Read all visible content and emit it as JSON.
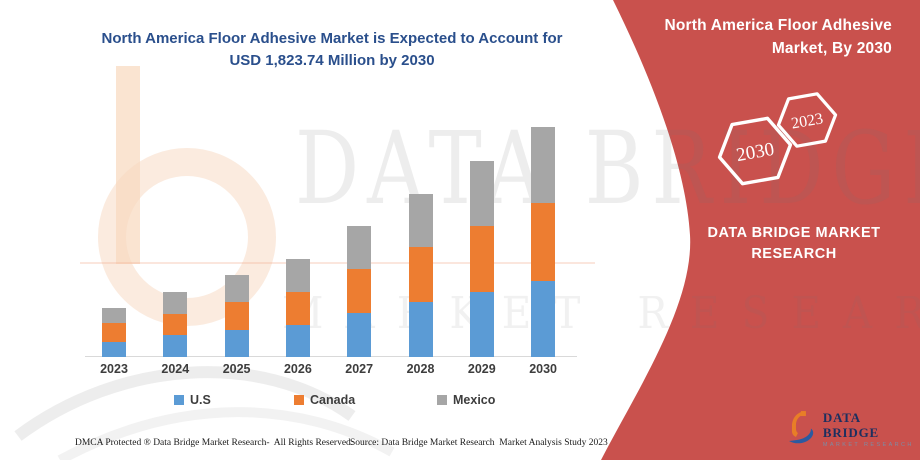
{
  "main_title": {
    "line1": "North America Floor Adhesive Market is Expected to Account for",
    "line2": "USD 1,823.74 Million by 2030",
    "color": "#2A4F8C"
  },
  "chart_data": {
    "type": "bar",
    "stacked": true,
    "orientation": "vertical",
    "title": "North America Floor Adhesive Market",
    "unit": "USD Million",
    "categories": [
      "2023",
      "2024",
      "2025",
      "2026",
      "2027",
      "2028",
      "2029",
      "2030"
    ],
    "series": [
      {
        "name": "U.S",
        "color": "#5B9BD5",
        "values": [
          121,
          177,
          217,
          251,
          351,
          438,
          517,
          604
        ]
      },
      {
        "name": "Canada",
        "color": "#ED7D31",
        "values": [
          146,
          165,
          216,
          261,
          344,
          431,
          520,
          618
        ]
      },
      {
        "name": "Mexico",
        "color": "#A6A6A6",
        "values": [
          119,
          172,
          214,
          261,
          343,
          422,
          517,
          602
        ]
      }
    ],
    "totals": [
      386,
      514,
      647,
      773,
      1038,
      1291,
      1554,
      1823.74
    ],
    "value_axis_visible": false,
    "gridlines": false,
    "legend_position": "bottom"
  },
  "side_panel": {
    "background": "#C9514D",
    "title_line1": "North America Floor Adhesive",
    "title_line2": "Market, By 2030",
    "hexagons": [
      {
        "label": "2030"
      },
      {
        "label": "2023"
      }
    ],
    "brand_line1": "DATA BRIDGE MARKET",
    "brand_line2": "RESEARCH"
  },
  "logo": {
    "title": "DATA BRIDGE",
    "subtitle": "MARKET RESEARCH"
  },
  "watermark": {
    "row1": "DATA BRIDGE",
    "row2": "MARKET RESEARCH"
  },
  "footer": {
    "left": "DMCA Protected ® Data Bridge Market Research-  All Rights Reserved.",
    "right": "Source: Data Bridge Market Research  Market Analysis Study 2023"
  }
}
